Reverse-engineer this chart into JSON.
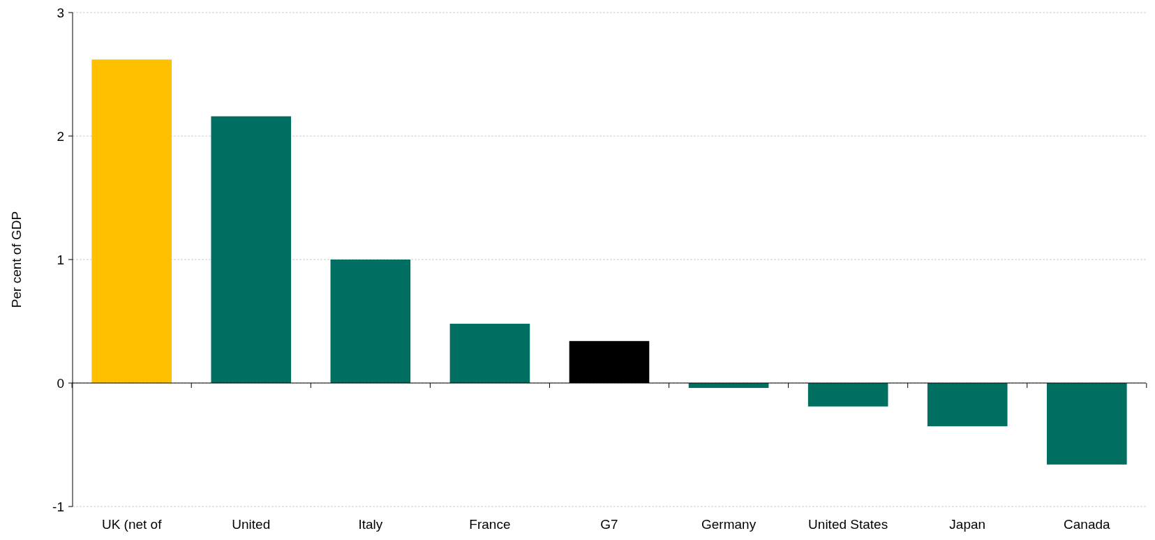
{
  "chart_data": {
    "type": "bar",
    "ylabel": "Per cent of GDP",
    "categories": [
      "UK (net of",
      "United",
      "Italy",
      "France",
      "G7",
      "Germany",
      "United States",
      "Japan",
      "Canada"
    ],
    "values": [
      2.62,
      2.16,
      1.0,
      0.48,
      0.34,
      -0.04,
      -0.19,
      -0.35,
      -0.66
    ],
    "colors": [
      "#ffc000",
      "#006e60",
      "#006e60",
      "#006e60",
      "#000000",
      "#006e60",
      "#006e60",
      "#006e60",
      "#006e60"
    ],
    "ylim": [
      -1,
      3
    ],
    "yticks": [
      -1,
      0,
      1,
      2,
      3
    ],
    "grid": "y"
  }
}
